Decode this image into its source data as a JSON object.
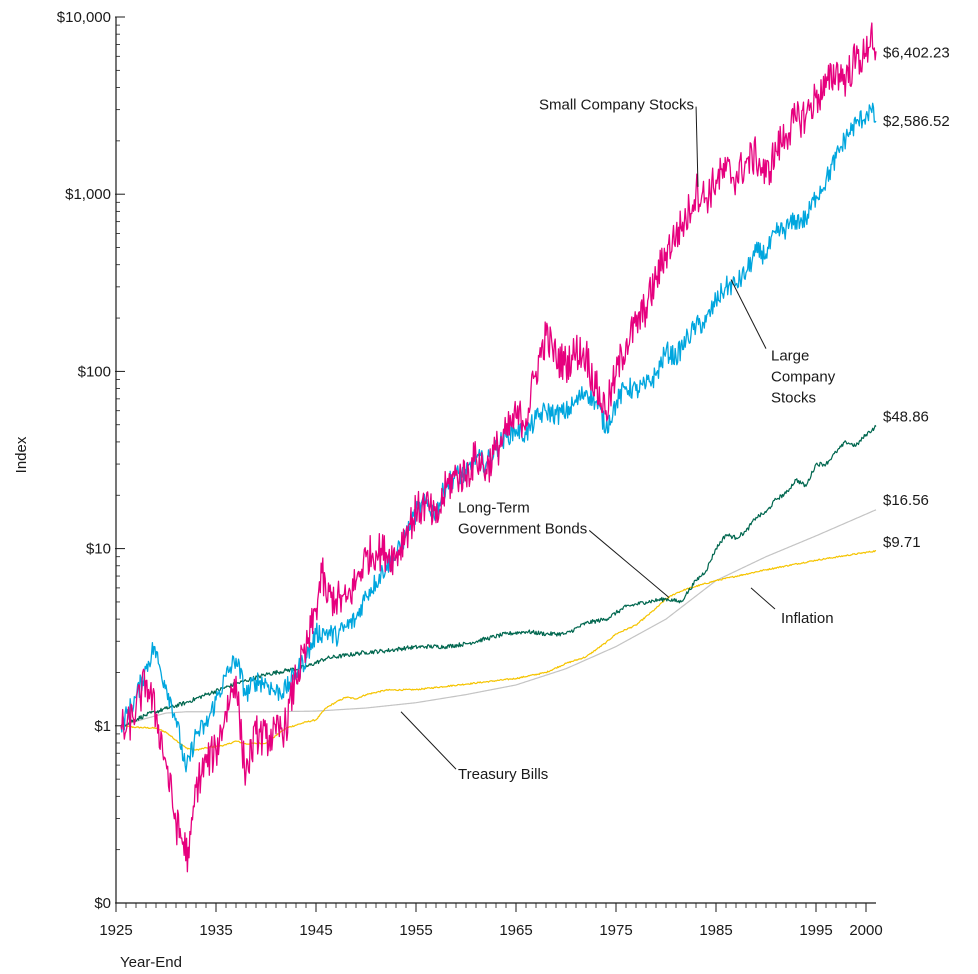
{
  "chart_data": {
    "type": "line",
    "xlabel": "Year-End",
    "ylabel": "Index",
    "scale": "log",
    "xlim": [
      1925,
      2001
    ],
    "ylim": [
      0.1,
      10000
    ],
    "x_ticks": [
      {
        "value": 1925,
        "label": "1925"
      },
      {
        "value": 1935,
        "label": "1935"
      },
      {
        "value": 1945,
        "label": "1945"
      },
      {
        "value": 1955,
        "label": "1955"
      },
      {
        "value": 1965,
        "label": "1965"
      },
      {
        "value": 1975,
        "label": "1975"
      },
      {
        "value": 1985,
        "label": "1985"
      },
      {
        "value": 1995,
        "label": "1995"
      },
      {
        "value": 2000,
        "label": "2000"
      }
    ],
    "y_ticks": [
      {
        "value": 10000,
        "label": "$10,000"
      },
      {
        "value": 1000,
        "label": "$1,000"
      },
      {
        "value": 100,
        "label": "$100"
      },
      {
        "value": 10,
        "label": "$10"
      },
      {
        "value": 1,
        "label": "$1"
      },
      {
        "value": 0.1,
        "label": "$0"
      }
    ],
    "series": [
      {
        "name": "Small Company Stocks",
        "color": "#e6007e",
        "end_label": "$6,402.23",
        "noise": 0.11,
        "points": [
          [
            1925.5,
            1.0
          ],
          [
            1926.0,
            0.93
          ],
          [
            1927.0,
            1.25
          ],
          [
            1928.0,
            1.8
          ],
          [
            1929.0,
            1.15
          ],
          [
            1930.0,
            0.62
          ],
          [
            1931.0,
            0.28
          ],
          [
            1932.3,
            0.18
          ],
          [
            1933.0,
            0.45
          ],
          [
            1934.0,
            0.62
          ],
          [
            1935.0,
            0.72
          ],
          [
            1936.0,
            1.2
          ],
          [
            1937.0,
            1.9
          ],
          [
            1937.6,
            0.75
          ],
          [
            1938.0,
            0.55
          ],
          [
            1939.0,
            0.9
          ],
          [
            1940.0,
            0.85
          ],
          [
            1941.0,
            0.9
          ],
          [
            1942.0,
            1.0
          ],
          [
            1943.0,
            1.9
          ],
          [
            1944.0,
            2.6
          ],
          [
            1945.0,
            4.6
          ],
          [
            1945.6,
            7.3
          ],
          [
            1946.0,
            5.4
          ],
          [
            1947.0,
            5.2
          ],
          [
            1948.0,
            5.0
          ],
          [
            1949.0,
            6.5
          ],
          [
            1950.0,
            9.0
          ],
          [
            1951.0,
            9.7
          ],
          [
            1952.0,
            9.5
          ],
          [
            1953.0,
            9.0
          ],
          [
            1954.0,
            12.5
          ],
          [
            1955.0,
            16.0
          ],
          [
            1956.0,
            18.0
          ],
          [
            1957.0,
            14.0
          ],
          [
            1958.0,
            22.0
          ],
          [
            1959.0,
            26.0
          ],
          [
            1960.0,
            26.0
          ],
          [
            1961.0,
            33.0
          ],
          [
            1962.0,
            28.0
          ],
          [
            1963.0,
            36.0
          ],
          [
            1964.0,
            44.0
          ],
          [
            1965.0,
            55.0
          ],
          [
            1966.0,
            54.0
          ],
          [
            1967.0,
            100.0
          ],
          [
            1968.0,
            160.0
          ],
          [
            1969.0,
            120.0
          ],
          [
            1970.0,
            110.0
          ],
          [
            1971.0,
            130.0
          ],
          [
            1972.0,
            125.0
          ],
          [
            1973.0,
            80.0
          ],
          [
            1974.0,
            60.0
          ],
          [
            1975.0,
            95.0
          ],
          [
            1976.0,
            145.0
          ],
          [
            1977.0,
            180.0
          ],
          [
            1978.0,
            230.0
          ],
          [
            1979.0,
            330.0
          ],
          [
            1980.0,
            470.0
          ],
          [
            1981.0,
            590.0
          ],
          [
            1982.0,
            720.0
          ],
          [
            1983.0,
            1050.0
          ],
          [
            1984.0,
            950.0
          ],
          [
            1985.0,
            1200.0
          ],
          [
            1986.0,
            1350.0
          ],
          [
            1987.0,
            1250.0
          ],
          [
            1988.0,
            1500.0
          ],
          [
            1989.0,
            1650.0
          ],
          [
            1990.0,
            1250.0
          ],
          [
            1991.0,
            1750.0
          ],
          [
            1992.0,
            2200.0
          ],
          [
            1993.0,
            2600.0
          ],
          [
            1994.0,
            2800.0
          ],
          [
            1995.0,
            3500.0
          ],
          [
            1996.0,
            4000.0
          ],
          [
            1997.0,
            5000.0
          ],
          [
            1998.0,
            4500.0
          ],
          [
            1999.0,
            5800.0
          ],
          [
            2000.0,
            6000.0
          ],
          [
            2000.5,
            8400.0
          ],
          [
            2001.0,
            6402.23
          ]
        ]
      },
      {
        "name": "Large Company Stocks",
        "color": "#00a6de",
        "end_label": "$2,586.52",
        "noise": 0.06,
        "points": [
          [
            1925.5,
            1.0
          ],
          [
            1927.0,
            1.45
          ],
          [
            1928.0,
            2.1
          ],
          [
            1928.8,
            2.8
          ],
          [
            1929.5,
            2.0
          ],
          [
            1930.0,
            1.7
          ],
          [
            1931.0,
            1.1
          ],
          [
            1932.0,
            0.55
          ],
          [
            1933.0,
            0.9
          ],
          [
            1934.0,
            1.0
          ],
          [
            1935.0,
            1.4
          ],
          [
            1936.0,
            1.9
          ],
          [
            1937.0,
            2.4
          ],
          [
            1938.0,
            1.5
          ],
          [
            1939.0,
            1.8
          ],
          [
            1940.0,
            1.75
          ],
          [
            1941.0,
            1.55
          ],
          [
            1942.0,
            1.6
          ],
          [
            1943.0,
            2.0
          ],
          [
            1944.0,
            2.4
          ],
          [
            1945.0,
            3.3
          ],
          [
            1946.0,
            3.4
          ],
          [
            1947.0,
            3.2
          ],
          [
            1948.0,
            3.6
          ],
          [
            1949.0,
            4.0
          ],
          [
            1950.0,
            5.5
          ],
          [
            1951.0,
            6.5
          ],
          [
            1952.0,
            8.0
          ],
          [
            1953.0,
            9.0
          ],
          [
            1954.0,
            12.0
          ],
          [
            1955.0,
            16.0
          ],
          [
            1956.0,
            18.0
          ],
          [
            1957.0,
            16.0
          ],
          [
            1958.0,
            23.0
          ],
          [
            1959.0,
            26.0
          ],
          [
            1960.0,
            26.0
          ],
          [
            1961.0,
            33.0
          ],
          [
            1962.0,
            30.0
          ],
          [
            1963.0,
            37.0
          ],
          [
            1964.0,
            43.0
          ],
          [
            1965.0,
            47.0
          ],
          [
            1966.0,
            44.0
          ],
          [
            1967.0,
            54.0
          ],
          [
            1968.0,
            60.0
          ],
          [
            1969.0,
            57.0
          ],
          [
            1970.0,
            59.0
          ],
          [
            1971.0,
            67.0
          ],
          [
            1972.0,
            78.0
          ],
          [
            1973.0,
            67.0
          ],
          [
            1974.0,
            48.0
          ],
          [
            1975.0,
            66.0
          ],
          [
            1976.0,
            82.0
          ],
          [
            1977.0,
            78.0
          ],
          [
            1978.0,
            83.0
          ],
          [
            1979.0,
            95.0
          ],
          [
            1980.0,
            130.0
          ],
          [
            1981.0,
            120.0
          ],
          [
            1982.0,
            150.0
          ],
          [
            1983.0,
            180.0
          ],
          [
            1984.0,
            190.0
          ],
          [
            1985.0,
            250.0
          ],
          [
            1986.0,
            300.0
          ],
          [
            1987.0,
            310.0
          ],
          [
            1988.0,
            360.0
          ],
          [
            1989.0,
            470.0
          ],
          [
            1990.0,
            460.0
          ],
          [
            1991.0,
            600.0
          ],
          [
            1992.0,
            640.0
          ],
          [
            1993.0,
            710.0
          ],
          [
            1994.0,
            720.0
          ],
          [
            1995.0,
            980.0
          ],
          [
            1996.0,
            1200.0
          ],
          [
            1997.0,
            1600.0
          ],
          [
            1998.0,
            2100.0
          ],
          [
            1999.0,
            2500.0
          ],
          [
            2000.0,
            2800.0
          ],
          [
            2000.5,
            3000.0
          ],
          [
            2001.0,
            2586.52
          ]
        ]
      },
      {
        "name": "Long-Term Government Bonds",
        "color": "#00674f",
        "end_label": "$48.86",
        "noise": 0.012,
        "points": [
          [
            1925.5,
            1.0
          ],
          [
            1928.0,
            1.15
          ],
          [
            1930.0,
            1.25
          ],
          [
            1932.0,
            1.35
          ],
          [
            1934.0,
            1.5
          ],
          [
            1936.0,
            1.65
          ],
          [
            1938.0,
            1.8
          ],
          [
            1940.0,
            1.95
          ],
          [
            1942.0,
            2.05
          ],
          [
            1944.0,
            2.15
          ],
          [
            1946.0,
            2.4
          ],
          [
            1948.0,
            2.5
          ],
          [
            1950.0,
            2.6
          ],
          [
            1952.0,
            2.65
          ],
          [
            1954.0,
            2.75
          ],
          [
            1956.0,
            2.8
          ],
          [
            1958.0,
            2.8
          ],
          [
            1960.0,
            2.9
          ],
          [
            1962.0,
            3.1
          ],
          [
            1964.0,
            3.3
          ],
          [
            1966.0,
            3.4
          ],
          [
            1968.0,
            3.3
          ],
          [
            1970.0,
            3.3
          ],
          [
            1972.0,
            3.8
          ],
          [
            1974.0,
            4.0
          ],
          [
            1976.0,
            4.7
          ],
          [
            1978.0,
            5.0
          ],
          [
            1980.0,
            5.2
          ],
          [
            1981.5,
            5.0
          ],
          [
            1982.0,
            5.5
          ],
          [
            1983.0,
            6.6
          ],
          [
            1984.0,
            7.5
          ],
          [
            1985.0,
            10.0
          ],
          [
            1986.0,
            12.0
          ],
          [
            1987.0,
            11.5
          ],
          [
            1988.0,
            12.5
          ],
          [
            1989.0,
            15.0
          ],
          [
            1990.0,
            16.0
          ],
          [
            1991.0,
            19.0
          ],
          [
            1992.0,
            20.5
          ],
          [
            1993.0,
            24.5
          ],
          [
            1994.0,
            22.5
          ],
          [
            1995.0,
            30.0
          ],
          [
            1996.0,
            30.0
          ],
          [
            1997.0,
            35.0
          ],
          [
            1998.0,
            40.0
          ],
          [
            1999.0,
            38.0
          ],
          [
            2000.0,
            44.0
          ],
          [
            2001.0,
            48.86
          ]
        ]
      },
      {
        "name": "Treasury Bills",
        "color": "#c4c4c4",
        "end_label": "$16.56",
        "noise": 0.0,
        "points": [
          [
            1925.5,
            1.0
          ],
          [
            1928.0,
            1.1
          ],
          [
            1930.0,
            1.18
          ],
          [
            1932.0,
            1.2
          ],
          [
            1934.0,
            1.2
          ],
          [
            1940.0,
            1.2
          ],
          [
            1945.0,
            1.21
          ],
          [
            1950.0,
            1.26
          ],
          [
            1955.0,
            1.35
          ],
          [
            1960.0,
            1.5
          ],
          [
            1965.0,
            1.7
          ],
          [
            1970.0,
            2.1
          ],
          [
            1975.0,
            2.8
          ],
          [
            1980.0,
            4.0
          ],
          [
            1985.0,
            6.6
          ],
          [
            1990.0,
            9.0
          ],
          [
            1995.0,
            11.8
          ],
          [
            2001.0,
            16.56
          ]
        ]
      },
      {
        "name": "Inflation",
        "color": "#f5c400",
        "end_label": "$9.71",
        "noise": 0.004,
        "points": [
          [
            1925.5,
            1.0
          ],
          [
            1927.0,
            0.98
          ],
          [
            1929.0,
            0.97
          ],
          [
            1930.0,
            0.92
          ],
          [
            1931.0,
            0.83
          ],
          [
            1932.0,
            0.75
          ],
          [
            1933.0,
            0.73
          ],
          [
            1934.0,
            0.75
          ],
          [
            1936.0,
            0.78
          ],
          [
            1937.0,
            0.82
          ],
          [
            1938.0,
            0.79
          ],
          [
            1940.0,
            0.8
          ],
          [
            1941.0,
            0.88
          ],
          [
            1942.0,
            0.97
          ],
          [
            1944.0,
            1.05
          ],
          [
            1945.0,
            1.08
          ],
          [
            1946.0,
            1.26
          ],
          [
            1947.0,
            1.36
          ],
          [
            1948.0,
            1.45
          ],
          [
            1949.0,
            1.42
          ],
          [
            1950.0,
            1.5
          ],
          [
            1952.0,
            1.59
          ],
          [
            1955.0,
            1.6
          ],
          [
            1960.0,
            1.72
          ],
          [
            1965.0,
            1.85
          ],
          [
            1968.0,
            2.0
          ],
          [
            1970.0,
            2.25
          ],
          [
            1972.0,
            2.45
          ],
          [
            1974.0,
            2.95
          ],
          [
            1975.0,
            3.3
          ],
          [
            1977.0,
            3.7
          ],
          [
            1979.0,
            4.6
          ],
          [
            1980.0,
            5.2
          ],
          [
            1981.0,
            5.6
          ],
          [
            1982.0,
            5.9
          ],
          [
            1985.0,
            6.6
          ],
          [
            1990.0,
            7.6
          ],
          [
            1995.0,
            8.6
          ],
          [
            2001.0,
            9.71
          ]
        ]
      }
    ],
    "annotations": [
      {
        "lines": [
          "Small Company Stocks"
        ],
        "series": "Small Company Stocks",
        "x": 1967.3,
        "y": 3000,
        "ax": 1983.2,
        "ay": 1100
      },
      {
        "lines": [
          "Large",
          "Company",
          "Stocks"
        ],
        "series": "Large Company Stocks",
        "x": 1990.5,
        "y": 115,
        "ax": 1986.5,
        "ay": 330
      },
      {
        "lines": [
          "Long-Term",
          "Government Bonds"
        ],
        "series": "Long-Term Government Bonds",
        "x": 1959.2,
        "y": 16,
        "ax": 1980.3,
        "ay": 5.3
      },
      {
        "lines": [
          "Inflation"
        ],
        "series": "Inflation",
        "x": 1991.5,
        "y": 3.8,
        "ax": 1988.5,
        "ay": 6.0
      },
      {
        "lines": [
          "Treasury Bills"
        ],
        "series": "Treasury Bills",
        "x": 1959.2,
        "y": 0.5,
        "ax": 1953.5,
        "ay": 1.2
      }
    ]
  }
}
